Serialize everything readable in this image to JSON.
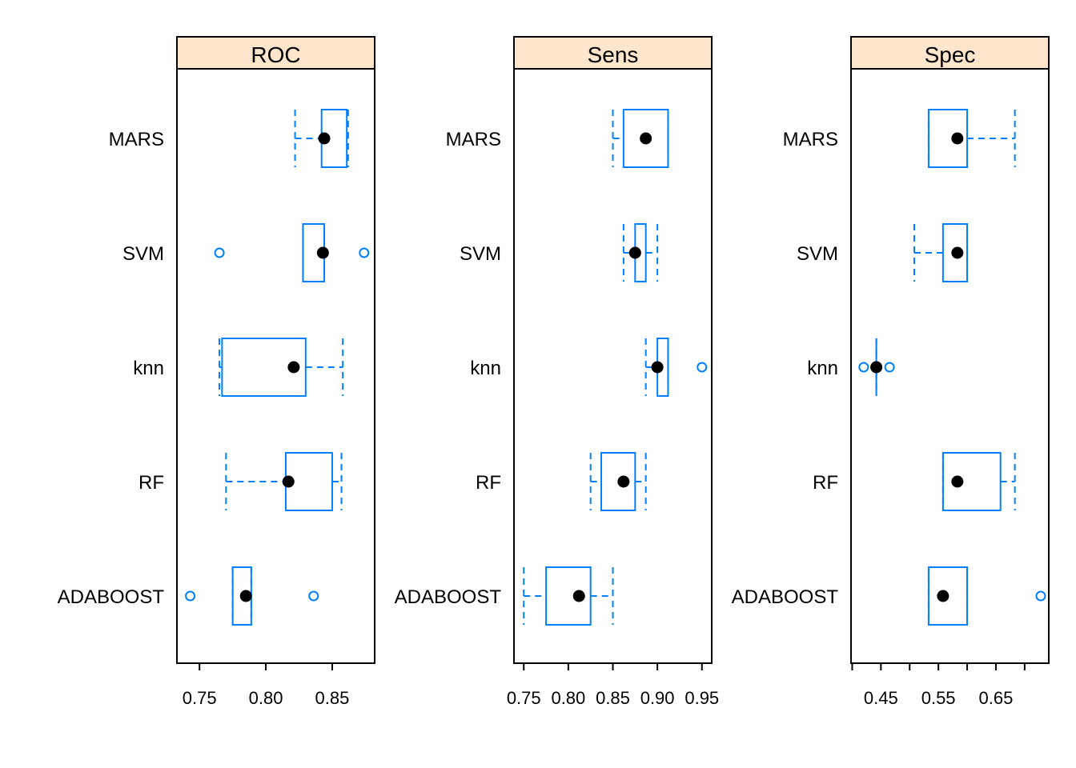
{
  "chart_data": {
    "type": "boxplot",
    "categories": [
      "MARS",
      "SVM",
      "knn",
      "RF",
      "ADABOOST"
    ],
    "style": {
      "strip_fill": "#FFE5CC",
      "box_color": "#0080FF",
      "median_color": "#000000",
      "frame_color": "#000000"
    },
    "panels": [
      {
        "title": "ROC",
        "xlim": [
          0.733,
          0.882
        ],
        "ticks": [
          0.75,
          0.8,
          0.85
        ],
        "tick_labels": [
          "0.75",
          "0.80",
          "0.85"
        ],
        "boxes": [
          {
            "category": "MARS",
            "whisker_low": 0.822,
            "q1": 0.842,
            "median": 0.844,
            "q3": 0.861,
            "whisker_high": 0.862,
            "outliers": []
          },
          {
            "category": "SVM",
            "whisker_low": 0.828,
            "q1": 0.828,
            "median": 0.843,
            "q3": 0.844,
            "whisker_high": 0.844,
            "outliers": [
              0.765,
              0.874
            ]
          },
          {
            "category": "knn",
            "whisker_low": 0.765,
            "q1": 0.767,
            "median": 0.821,
            "q3": 0.83,
            "whisker_high": 0.858,
            "outliers": []
          },
          {
            "category": "RF",
            "whisker_low": 0.77,
            "q1": 0.815,
            "median": 0.817,
            "q3": 0.85,
            "whisker_high": 0.857,
            "outliers": []
          },
          {
            "category": "ADABOOST",
            "whisker_low": 0.775,
            "q1": 0.775,
            "median": 0.785,
            "q3": 0.789,
            "whisker_high": 0.789,
            "outliers": [
              0.743,
              0.836
            ]
          }
        ]
      },
      {
        "title": "Sens",
        "xlim": [
          0.739,
          0.961
        ],
        "ticks": [
          0.75,
          0.8,
          0.85,
          0.9,
          0.95
        ],
        "tick_labels": [
          "0.75",
          "0.80",
          "0.85",
          "0.90",
          "0.95"
        ],
        "boxes": [
          {
            "category": "MARS",
            "whisker_low": 0.85,
            "q1": 0.862,
            "median": 0.887,
            "q3": 0.912,
            "whisker_high": 0.912,
            "outliers": []
          },
          {
            "category": "SVM",
            "whisker_low": 0.862,
            "q1": 0.875,
            "median": 0.875,
            "q3": 0.887,
            "whisker_high": 0.9,
            "outliers": []
          },
          {
            "category": "knn",
            "whisker_low": 0.887,
            "q1": 0.9,
            "median": 0.9,
            "q3": 0.912,
            "whisker_high": 0.912,
            "outliers": [
              0.95
            ]
          },
          {
            "category": "RF",
            "whisker_low": 0.825,
            "q1": 0.837,
            "median": 0.862,
            "q3": 0.875,
            "whisker_high": 0.887,
            "outliers": []
          },
          {
            "category": "ADABOOST",
            "whisker_low": 0.75,
            "q1": 0.775,
            "median": 0.812,
            "q3": 0.825,
            "whisker_high": 0.85,
            "outliers": []
          }
        ]
      },
      {
        "title": "Spec",
        "xlim": [
          0.398,
          0.742
        ],
        "ticks": [
          0.4,
          0.45,
          0.5,
          0.55,
          0.6,
          0.65,
          0.7
        ],
        "tick_labels": [
          "",
          "0.45",
          "",
          "0.55",
          "",
          "0.65",
          ""
        ],
        "boxes": [
          {
            "category": "MARS",
            "whisker_low": 0.533,
            "q1": 0.533,
            "median": 0.583,
            "q3": 0.6,
            "whisker_high": 0.683,
            "outliers": []
          },
          {
            "category": "SVM",
            "whisker_low": 0.508,
            "q1": 0.558,
            "median": 0.583,
            "q3": 0.6,
            "whisker_high": 0.6,
            "outliers": []
          },
          {
            "category": "knn",
            "whisker_low": 0.442,
            "q1": 0.442,
            "median": 0.442,
            "q3": 0.442,
            "whisker_high": 0.442,
            "outliers": [
              0.42,
              0.465
            ]
          },
          {
            "category": "RF",
            "whisker_low": 0.558,
            "q1": 0.558,
            "median": 0.583,
            "q3": 0.658,
            "whisker_high": 0.683,
            "outliers": []
          },
          {
            "category": "ADABOOST",
            "whisker_low": 0.533,
            "q1": 0.533,
            "median": 0.558,
            "q3": 0.6,
            "whisker_high": 0.6,
            "outliers": [
              0.728
            ]
          }
        ]
      }
    ]
  }
}
